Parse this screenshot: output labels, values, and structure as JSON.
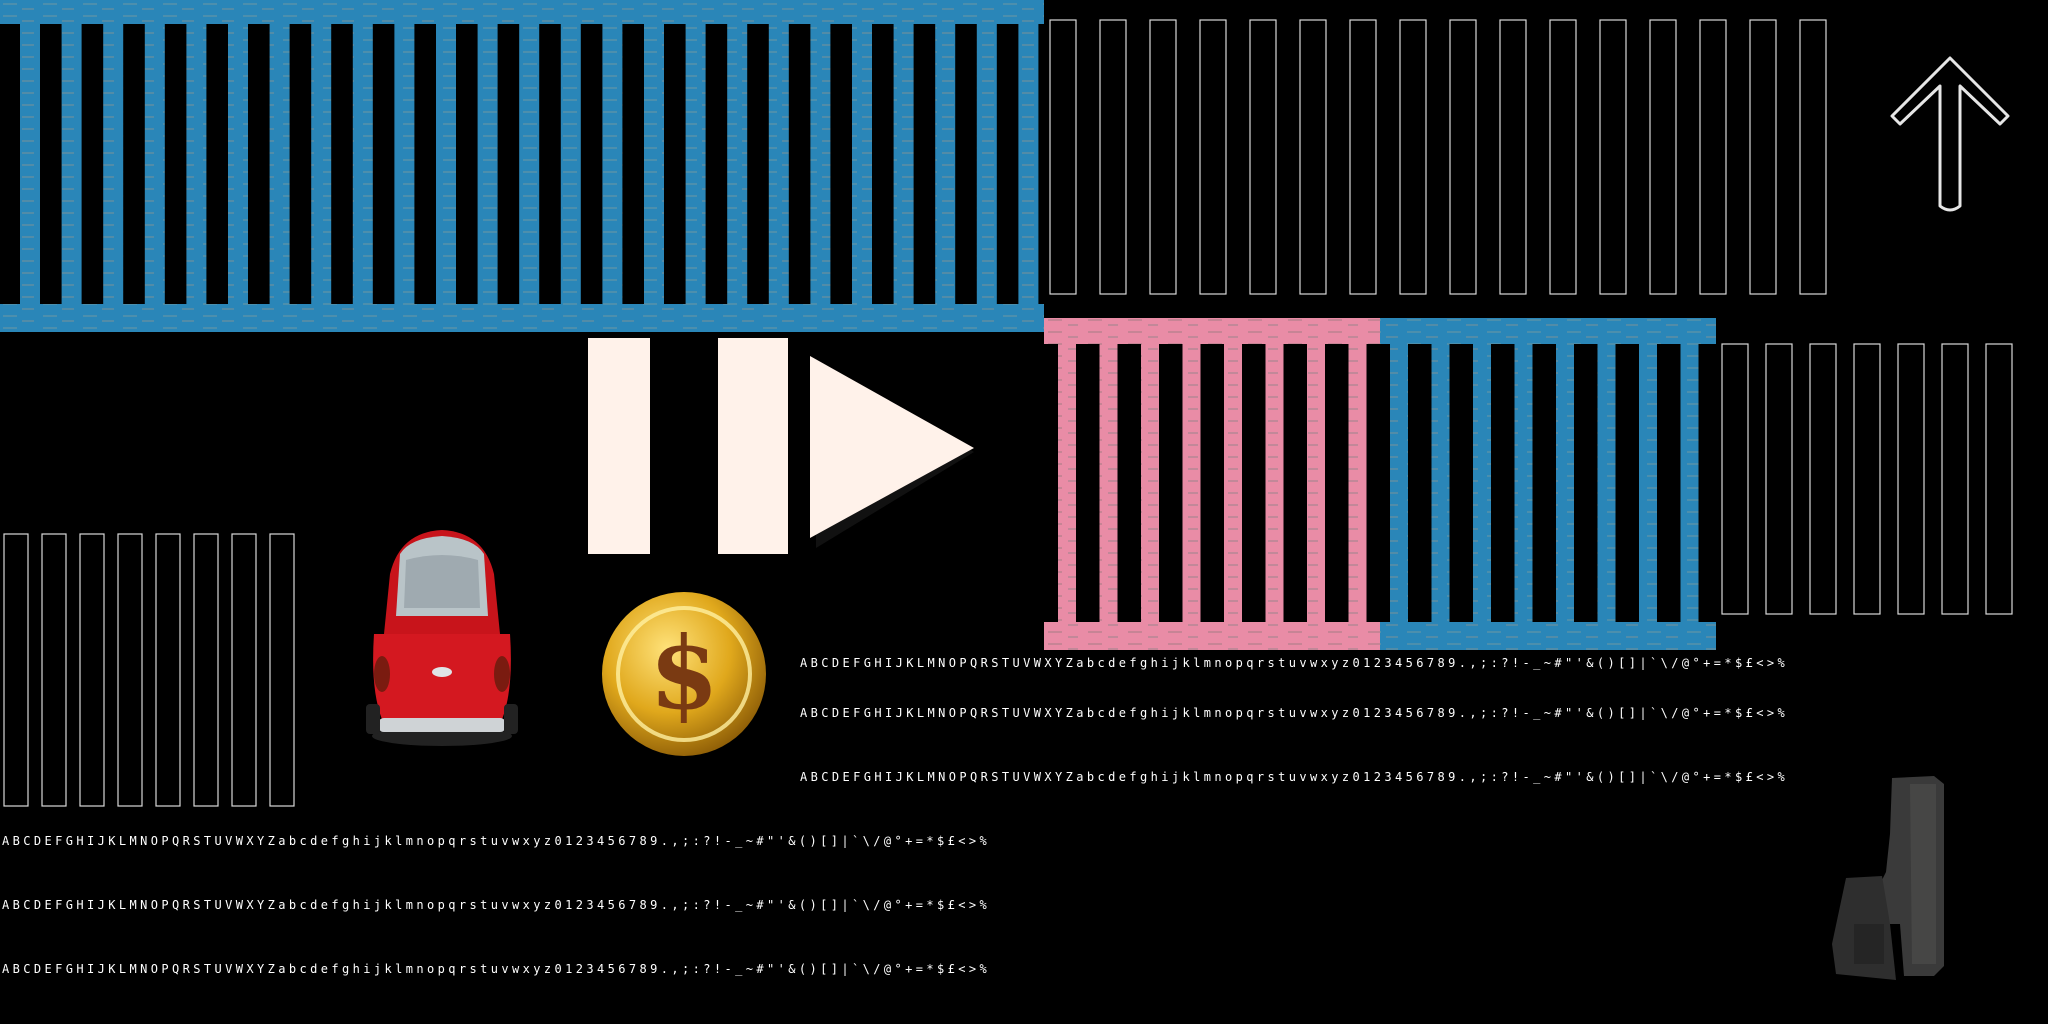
{
  "atlas": {
    "fence_colors": {
      "blue": "#2a86b8",
      "blue_dark": "#1d6f9c",
      "pink": "#e98ca6",
      "pink_dark": "#c97d96",
      "outline": "#d8d8d8"
    },
    "icons": [
      "pause-icon",
      "play-icon",
      "up-arrow-icon",
      "red-car-sprite",
      "gold-dollar-coin",
      "pistol-sprite"
    ],
    "coin_symbol": "$",
    "font_sheet_rows": [
      "ABCDEFGHIJKLMNOPQRSTUVWXYZabcdefghijklmnopqrstuvwxyz0123456789.,;:?!-_~#\"'&()[]|`\\/@°+=*$£<>%",
      "ABCDEFGHIJKLMNOPQRSTUVWXYZabcdefghijklmnopqrstuvwxyz0123456789.,;:?!-_~#\"'&()[]|`\\/@°+=*$£<>%",
      "ABCDEFGHIJKLMNOPQRSTUVWXYZabcdefghijklmnopqrstuvwxyz0123456789.,;:?!-_~#\"'&()[]|`\\/@°+=*$£<>%",
      "ABCDEFGHIJKLMNOPQRSTUVWXYZabcdefghijklmnopqrstuvwxyz0123456789.,;:?!-_~#\"'&()[]|`\\/@°+=*$£<>%",
      "ABCDEFGHIJKLMNOPQRSTUVWXYZabcdefghijklmnopqrstuvwxyz0123456789.,;:?!-_~#\"'&()[]|`\\/@°+=*$£<>%",
      "ABCDEFGHIJKLMNOPQRSTUVWXYZabcdefghijklmnopqrstuvwxyz0123456789.,;:?!-_~#\"'&()[]|`\\/@°+=*$£<>%"
    ]
  }
}
